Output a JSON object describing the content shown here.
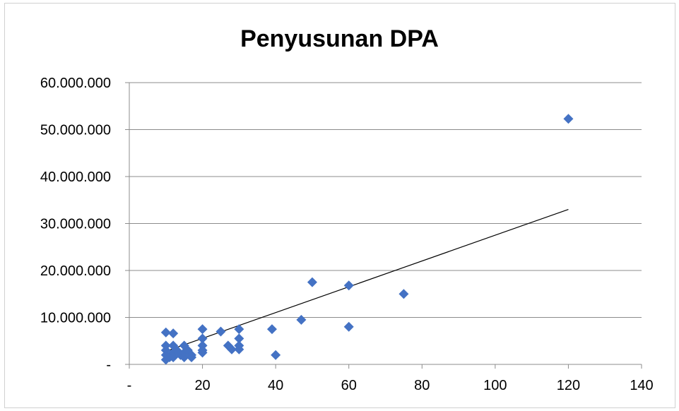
{
  "chart_data": {
    "type": "scatter",
    "title": "Penyusunan DPA",
    "xlabel": "",
    "ylabel": "",
    "xlim": [
      0,
      140
    ],
    "ylim": [
      0,
      60000000
    ],
    "x_ticks": [
      0,
      20,
      40,
      60,
      80,
      100,
      120,
      140
    ],
    "x_tick_labels": [
      "-",
      "20",
      "40",
      "60",
      "80",
      "100",
      "120",
      "140"
    ],
    "y_ticks": [
      0,
      10000000,
      20000000,
      30000000,
      40000000,
      50000000,
      60000000
    ],
    "y_tick_labels": [
      "-",
      "10.000.000",
      "20.000.000",
      "30.000.000",
      "40.000.000",
      "50.000.000",
      "60.000.000"
    ],
    "grid": "horizontal",
    "legend": "none",
    "marker": "diamond",
    "marker_color": "#4472C4",
    "trendline_color": "#000000",
    "series": [
      {
        "points": [
          [
            10,
            6800000
          ],
          [
            10,
            4000000
          ],
          [
            10,
            3000000
          ],
          [
            10,
            2000000
          ],
          [
            10,
            1000000
          ],
          [
            11,
            1500000
          ],
          [
            12,
            6600000
          ],
          [
            12,
            4000000
          ],
          [
            12,
            2500000
          ],
          [
            12,
            1500000
          ],
          [
            13,
            3000000
          ],
          [
            14,
            2000000
          ],
          [
            15,
            4000000
          ],
          [
            15,
            2500000
          ],
          [
            15,
            1500000
          ],
          [
            16,
            3000000
          ],
          [
            17,
            2000000
          ],
          [
            17,
            1500000
          ],
          [
            20,
            7500000
          ],
          [
            20,
            5500000
          ],
          [
            20,
            4000000
          ],
          [
            20,
            3000000
          ],
          [
            20,
            2500000
          ],
          [
            25,
            7000000
          ],
          [
            27,
            4000000
          ],
          [
            28,
            3200000
          ],
          [
            30,
            7500000
          ],
          [
            30,
            5500000
          ],
          [
            30,
            4000000
          ],
          [
            30,
            3200000
          ],
          [
            39,
            7500000
          ],
          [
            40,
            2000000
          ],
          [
            47,
            9500000
          ],
          [
            50,
            17500000
          ],
          [
            60,
            16800000
          ],
          [
            60,
            8000000
          ],
          [
            75,
            15000000
          ],
          [
            120,
            52300000
          ]
        ],
        "trendline": {
          "type": "linear",
          "from": [
            10,
            2800000
          ],
          "to": [
            120,
            33000000
          ]
        }
      }
    ]
  }
}
